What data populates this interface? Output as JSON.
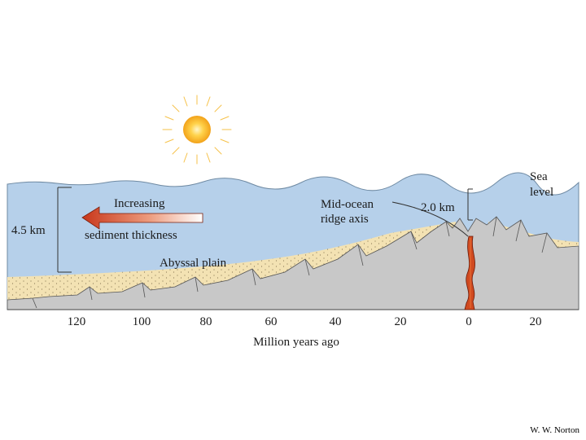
{
  "diagram": {
    "labels": {
      "sea_level_line1": "Sea",
      "sea_level_line2": "level",
      "ridge_axis_line1": "Mid-ocean",
      "ridge_axis_line2": "ridge axis",
      "ridge_depth": "2.0 km",
      "plain_depth": "4.5 km",
      "increasing": "Increasing",
      "sediment_thickness": "sediment thickness",
      "abyssal_plain": "Abyssal plain"
    },
    "axis": {
      "title": "Million years ago",
      "ticks": [
        "120",
        "100",
        "80",
        "60",
        "40",
        "20",
        "0",
        "20"
      ]
    },
    "colors": {
      "ocean": "#b6d0ea",
      "sediment": "#f3e2b3",
      "crust": "#c8c8c8",
      "magma": "#d04a20",
      "arrow_start": "#c8361a",
      "arrow_end": "#ffffff",
      "sun": "#f6b51f"
    }
  },
  "credit": "W. W. Norton"
}
